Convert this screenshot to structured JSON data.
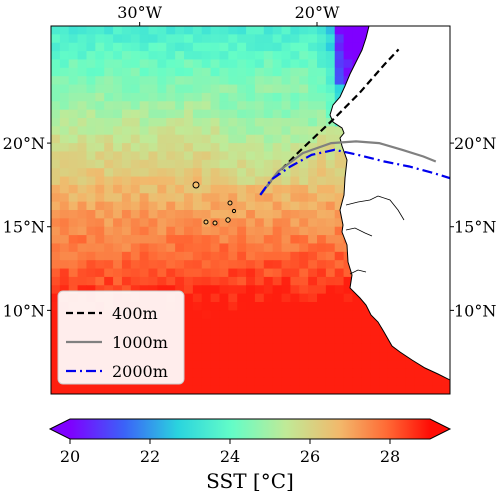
{
  "chart_data": {
    "type": "heatmap",
    "title": "",
    "projection": "PlateCarree",
    "variable": "SST",
    "extent_lon": [
      -35,
      -12.5
    ],
    "extent_lat": [
      5,
      27
    ],
    "x_ticks": [
      {
        "value": -30,
        "label": "30°W"
      },
      {
        "value": -20,
        "label": "20°W"
      }
    ],
    "y_ticks": [
      {
        "value": 20,
        "label": "20°N"
      },
      {
        "value": 15,
        "label": "15°N"
      },
      {
        "value": 10,
        "label": "10°N"
      }
    ],
    "colorbar": {
      "label": "SST [°C]",
      "vmin": 20,
      "vmax": 29,
      "ticks": [
        {
          "value": 20,
          "label": "20"
        },
        {
          "value": 22,
          "label": "22"
        },
        {
          "value": 24,
          "label": "24"
        },
        {
          "value": 26,
          "label": "26"
        },
        {
          "value": 28,
          "label": "28"
        }
      ],
      "extend": "both",
      "colormap": "rainbow"
    },
    "legend": {
      "placement": "lower-left",
      "entries": [
        {
          "label": "400m",
          "color": "#000000",
          "style": "dashed"
        },
        {
          "label": "1000m",
          "color": "#808080",
          "style": "solid"
        },
        {
          "label": "2000m",
          "color": "#0000ee",
          "style": "dashdot"
        }
      ]
    },
    "contours": [
      {
        "name": "400m",
        "points": [
          [
            -23.2,
            16.9
          ],
          [
            -22.4,
            18.0
          ],
          [
            -21.0,
            19.5
          ],
          [
            -19.0,
            21.5
          ],
          [
            -17.6,
            23.0
          ],
          [
            -16.2,
            24.7
          ],
          [
            -15.4,
            25.6
          ]
        ]
      },
      {
        "name": "1000m",
        "points": [
          [
            -23.2,
            16.9
          ],
          [
            -22.2,
            18.3
          ],
          [
            -20.8,
            19.4
          ],
          [
            -19.2,
            20.0
          ],
          [
            -17.8,
            20.1
          ],
          [
            -16.5,
            20.0
          ],
          [
            -15.2,
            19.6
          ],
          [
            -14.0,
            19.2
          ],
          [
            -13.3,
            18.9
          ]
        ]
      },
      {
        "name": "2000m",
        "points": [
          [
            -23.2,
            16.9
          ],
          [
            -22.6,
            17.8
          ],
          [
            -21.5,
            18.6
          ],
          [
            -20.3,
            19.3
          ],
          [
            -19.0,
            19.6
          ],
          [
            -17.7,
            19.3
          ],
          [
            -16.2,
            18.9
          ],
          [
            -14.8,
            18.6
          ],
          [
            -13.4,
            18.2
          ],
          [
            -12.5,
            17.9
          ]
        ]
      }
    ],
    "sst_field": {
      "note_units": "°C",
      "upwelling_cells": [
        {
          "lon": -17.5,
          "lat": 25.5,
          "value": 20.2
        },
        {
          "lon": -18.0,
          "lat": 24.0,
          "value": 21.0
        },
        {
          "lon": -18.0,
          "lat": 22.0,
          "value": 22.5
        },
        {
          "lon": -17.5,
          "lat": 21.0,
          "value": 22.0
        }
      ]
    },
    "land": {
      "color": "#ffffff"
    }
  }
}
